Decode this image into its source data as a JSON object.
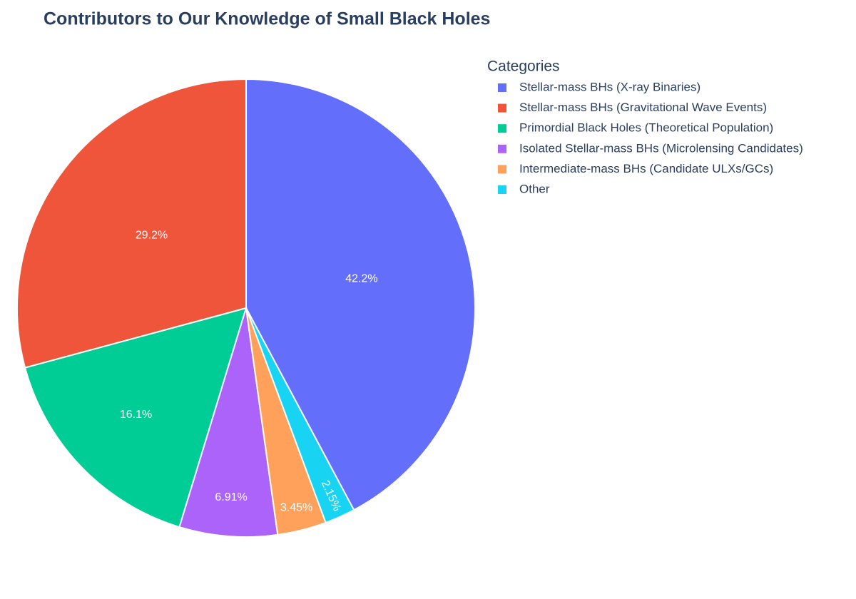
{
  "chart_data": {
    "type": "pie",
    "title": "Contributors to Our Knowledge of Small Black Holes",
    "legend_title": "Categories",
    "categories": [
      "Stellar-mass BHs (X-ray Binaries)",
      "Stellar-mass BHs (Gravitational Wave Events)",
      "Primordial Black Holes (Theoretical Population)",
      "Isolated Stellar-mass BHs (Microlensing Candidates)",
      "Intermediate-mass BHs (Candidate ULXs/GCs)",
      "Other"
    ],
    "values": [
      42.2,
      29.2,
      16.1,
      6.91,
      3.45,
      2.15
    ],
    "value_labels": [
      "42.2%",
      "29.2%",
      "16.1%",
      "6.91%",
      "3.45%",
      "2.15%"
    ],
    "colors": [
      "#636efa",
      "#ef553b",
      "#00cc96",
      "#ab63fa",
      "#ffa15a",
      "#19d3f3"
    ]
  }
}
